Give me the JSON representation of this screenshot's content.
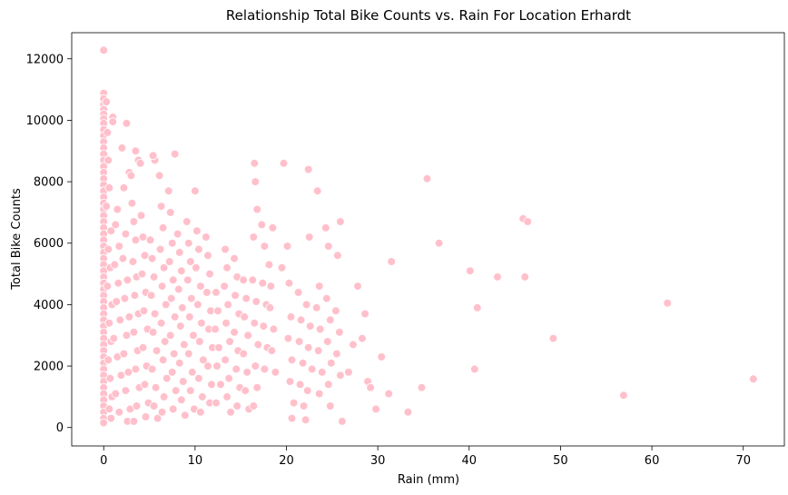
{
  "chart_data": {
    "type": "scatter",
    "title": "Relationship Total Bike Counts vs. Rain For Location Erhardt",
    "xlabel": "Rain (mm)",
    "ylabel": "Total Bike Counts",
    "xlim": [
      -3.5,
      74.5
    ],
    "ylim": [
      -600,
      12850
    ],
    "xticks": [
      0,
      10,
      20,
      30,
      40,
      50,
      60,
      70
    ],
    "yticks": [
      0,
      2000,
      4000,
      6000,
      8000,
      10000,
      12000
    ],
    "xtick_labels": [
      "0",
      "10",
      "20",
      "30",
      "40",
      "50",
      "60",
      "70"
    ],
    "ytick_labels": [
      "0",
      "2000",
      "4000",
      "6000",
      "8000",
      "10000",
      "12000"
    ],
    "grid": false,
    "marker_color": "#ffc0cb",
    "marker_edge": "#ffffff",
    "points": [
      [
        0,
        12280
      ],
      [
        0,
        10880
      ],
      [
        0,
        10700
      ],
      [
        0,
        10500
      ],
      [
        0,
        10350
      ],
      [
        0,
        10200
      ],
      [
        0,
        10050
      ],
      [
        0,
        9900
      ],
      [
        0,
        9700
      ],
      [
        0,
        9500
      ],
      [
        0,
        9300
      ],
      [
        0,
        9100
      ],
      [
        0,
        8900
      ],
      [
        0,
        8700
      ],
      [
        0,
        8500
      ],
      [
        0,
        8300
      ],
      [
        0,
        8100
      ],
      [
        0,
        7900
      ],
      [
        0,
        7700
      ],
      [
        0,
        7500
      ],
      [
        0,
        7300
      ],
      [
        0,
        7100
      ],
      [
        0,
        6900
      ],
      [
        0,
        6700
      ],
      [
        0,
        6500
      ],
      [
        0,
        6300
      ],
      [
        0,
        6100
      ],
      [
        0,
        5900
      ],
      [
        0,
        5700
      ],
      [
        0,
        5500
      ],
      [
        0,
        5300
      ],
      [
        0,
        5100
      ],
      [
        0,
        4900
      ],
      [
        0,
        4700
      ],
      [
        0,
        4500
      ],
      [
        0,
        4300
      ],
      [
        0,
        4100
      ],
      [
        0,
        3900
      ],
      [
        0,
        3700
      ],
      [
        0,
        3500
      ],
      [
        0,
        3300
      ],
      [
        0,
        3100
      ],
      [
        0,
        2900
      ],
      [
        0,
        2700
      ],
      [
        0,
        2500
      ],
      [
        0,
        2300
      ],
      [
        0,
        2100
      ],
      [
        0,
        1900
      ],
      [
        0,
        1700
      ],
      [
        0,
        1500
      ],
      [
        0,
        1300
      ],
      [
        0,
        1100
      ],
      [
        0,
        900
      ],
      [
        0,
        700
      ],
      [
        0,
        500
      ],
      [
        0,
        300
      ],
      [
        0,
        150
      ],
      [
        0.3,
        10600
      ],
      [
        0.4,
        9600
      ],
      [
        0.5,
        8700
      ],
      [
        0.6,
        7800
      ],
      [
        0.3,
        7200
      ],
      [
        0.8,
        6400
      ],
      [
        0.5,
        5800
      ],
      [
        0.7,
        5200
      ],
      [
        0.4,
        4600
      ],
      [
        0.9,
        4000
      ],
      [
        0.6,
        3400
      ],
      [
        0.8,
        2800
      ],
      [
        0.5,
        2200
      ],
      [
        0.7,
        1600
      ],
      [
        0.9,
        1000
      ],
      [
        0.6,
        600
      ],
      [
        0.8,
        300
      ],
      [
        1,
        10100
      ],
      [
        1,
        9950
      ],
      [
        1.5,
        7100
      ],
      [
        1.3,
        6600
      ],
      [
        1.7,
        5900
      ],
      [
        1.2,
        5300
      ],
      [
        1.6,
        4700
      ],
      [
        1.4,
        4100
      ],
      [
        1.8,
        3500
      ],
      [
        1.1,
        2900
      ],
      [
        1.5,
        2300
      ],
      [
        1.9,
        1700
      ],
      [
        1.3,
        1100
      ],
      [
        1.7,
        500
      ],
      [
        2,
        9100
      ],
      [
        2.2,
        7800
      ],
      [
        2.4,
        6300
      ],
      [
        2.1,
        5500
      ],
      [
        2.6,
        4800
      ],
      [
        2.3,
        4200
      ],
      [
        2.8,
        3600
      ],
      [
        2.5,
        3000
      ],
      [
        2.2,
        2400
      ],
      [
        2.7,
        1800
      ],
      [
        2.4,
        1200
      ],
      [
        2.9,
        600
      ],
      [
        2.6,
        200
      ],
      [
        2.5,
        9900
      ],
      [
        2.8,
        8300
      ],
      [
        3,
        8200
      ],
      [
        3.1,
        7300
      ],
      [
        3.3,
        6700
      ],
      [
        3.5,
        6100
      ],
      [
        3.2,
        5400
      ],
      [
        3.6,
        4900
      ],
      [
        3.4,
        4300
      ],
      [
        3.8,
        3700
      ],
      [
        3.3,
        3100
      ],
      [
        3.7,
        2500
      ],
      [
        3.5,
        1900
      ],
      [
        3.9,
        1300
      ],
      [
        3.6,
        700
      ],
      [
        3.3,
        200
      ],
      [
        3.5,
        9000
      ],
      [
        3.8,
        8700
      ],
      [
        4,
        8600
      ],
      [
        4.1,
        6900
      ],
      [
        4.3,
        6200
      ],
      [
        4.5,
        5600
      ],
      [
        4.2,
        5000
      ],
      [
        4.6,
        4400
      ],
      [
        4.4,
        3800
      ],
      [
        4.8,
        3200
      ],
      [
        4.3,
        2600
      ],
      [
        4.7,
        2000
      ],
      [
        4.5,
        1400
      ],
      [
        4.9,
        800
      ],
      [
        4.6,
        350
      ],
      [
        5.1,
        6100
      ],
      [
        5.3,
        5500
      ],
      [
        5.5,
        4900
      ],
      [
        5.2,
        4300
      ],
      [
        5.6,
        3700
      ],
      [
        5.4,
        3100
      ],
      [
        5.8,
        2500
      ],
      [
        5.3,
        1900
      ],
      [
        5.7,
        1300
      ],
      [
        5.5,
        700
      ],
      [
        5.9,
        300
      ],
      [
        5.6,
        8700
      ],
      [
        5.4,
        8850
      ],
      [
        6.1,
        8200
      ],
      [
        6.3,
        7200
      ],
      [
        6.5,
        6500
      ],
      [
        6.2,
        5800
      ],
      [
        6.6,
        5200
      ],
      [
        6.4,
        4600
      ],
      [
        6.8,
        4000
      ],
      [
        6.3,
        3400
      ],
      [
        6.7,
        2800
      ],
      [
        6.5,
        2200
      ],
      [
        6.9,
        1600
      ],
      [
        6.6,
        1000
      ],
      [
        6.4,
        500
      ],
      [
        7.1,
        7700
      ],
      [
        7.3,
        7000
      ],
      [
        7.5,
        6000
      ],
      [
        7.2,
        5400
      ],
      [
        7.6,
        4800
      ],
      [
        7.4,
        4200
      ],
      [
        7.8,
        3600
      ],
      [
        7.3,
        3000
      ],
      [
        7.7,
        2400
      ],
      [
        7.5,
        1800
      ],
      [
        7.9,
        1200
      ],
      [
        7.6,
        600
      ],
      [
        7.8,
        8900
      ],
      [
        8.1,
        6300
      ],
      [
        8.3,
        5700
      ],
      [
        8.5,
        5100
      ],
      [
        8.2,
        4500
      ],
      [
        8.6,
        3900
      ],
      [
        8.4,
        3300
      ],
      [
        8.8,
        2700
      ],
      [
        8.3,
        2100
      ],
      [
        8.7,
        1500
      ],
      [
        8.5,
        900
      ],
      [
        8.9,
        400
      ],
      [
        9.1,
        6700
      ],
      [
        9.3,
        6000
      ],
      [
        9.5,
        5400
      ],
      [
        9.2,
        4800
      ],
      [
        9.6,
        4200
      ],
      [
        9.4,
        3600
      ],
      [
        9.8,
        3000
      ],
      [
        9.3,
        2400
      ],
      [
        9.7,
        1800
      ],
      [
        9.5,
        1200
      ],
      [
        9.9,
        600
      ],
      [
        10,
        7700
      ],
      [
        10.2,
        6400
      ],
      [
        10.4,
        5800
      ],
      [
        10.1,
        5200
      ],
      [
        10.6,
        4600
      ],
      [
        10.3,
        4000
      ],
      [
        10.7,
        3400
      ],
      [
        10.5,
        2800
      ],
      [
        10.9,
        2200
      ],
      [
        10.4,
        1600
      ],
      [
        10.8,
        1000
      ],
      [
        10.6,
        500
      ],
      [
        11.2,
        6200
      ],
      [
        11.4,
        5600
      ],
      [
        11.6,
        5000
      ],
      [
        11.3,
        4400
      ],
      [
        11.7,
        3800
      ],
      [
        11.5,
        3200
      ],
      [
        11.9,
        2600
      ],
      [
        11.4,
        2000
      ],
      [
        11.8,
        1400
      ],
      [
        11.6,
        800
      ],
      [
        12.3,
        4400
      ],
      [
        12.5,
        3800
      ],
      [
        12.2,
        3200
      ],
      [
        12.6,
        2600
      ],
      [
        12.4,
        2000
      ],
      [
        12.8,
        1400
      ],
      [
        12.3,
        800
      ],
      [
        13.3,
        5800
      ],
      [
        13.5,
        5200
      ],
      [
        13.2,
        4600
      ],
      [
        13.6,
        4000
      ],
      [
        13.4,
        3400
      ],
      [
        13.8,
        2800
      ],
      [
        13.3,
        2200
      ],
      [
        13.7,
        1600
      ],
      [
        13.5,
        1000
      ],
      [
        13.9,
        500
      ],
      [
        14.3,
        5500
      ],
      [
        14.6,
        4900
      ],
      [
        14.4,
        4300
      ],
      [
        14.8,
        3700
      ],
      [
        14.3,
        3100
      ],
      [
        14.7,
        2500
      ],
      [
        14.5,
        1900
      ],
      [
        14.9,
        1300
      ],
      [
        14.6,
        700
      ],
      [
        15.3,
        4800
      ],
      [
        15.6,
        4200
      ],
      [
        15.4,
        3600
      ],
      [
        15.8,
        3000
      ],
      [
        15.3,
        2400
      ],
      [
        15.7,
        1800
      ],
      [
        15.5,
        1200
      ],
      [
        15.9,
        600
      ],
      [
        16.5,
        8600
      ],
      [
        16.6,
        8000
      ],
      [
        16.8,
        7100
      ],
      [
        16.4,
        6200
      ],
      [
        16.3,
        4800
      ],
      [
        16.7,
        4100
      ],
      [
        16.5,
        3400
      ],
      [
        16.9,
        2700
      ],
      [
        16.6,
        2000
      ],
      [
        16.8,
        1300
      ],
      [
        16.4,
        700
      ],
      [
        17.3,
        6600
      ],
      [
        17.6,
        5900
      ],
      [
        17.4,
        4700
      ],
      [
        17.8,
        4000
      ],
      [
        17.5,
        3300
      ],
      [
        17.9,
        2600
      ],
      [
        17.6,
        1900
      ],
      [
        18.1,
        5300
      ],
      [
        18.3,
        4600
      ],
      [
        18.5,
        6500
      ],
      [
        18.2,
        3900
      ],
      [
        18.6,
        3200
      ],
      [
        18.4,
        2500
      ],
      [
        18.8,
        1800
      ],
      [
        19.7,
        8600
      ],
      [
        19.5,
        5200
      ],
      [
        20.1,
        5900
      ],
      [
        20.3,
        4700
      ],
      [
        20.5,
        3600
      ],
      [
        20.2,
        2900
      ],
      [
        20.6,
        2200
      ],
      [
        20.4,
        1500
      ],
      [
        20.8,
        800
      ],
      [
        20.6,
        300
      ],
      [
        21.3,
        4400
      ],
      [
        21.6,
        3500
      ],
      [
        21.4,
        2800
      ],
      [
        21.8,
        2100
      ],
      [
        21.5,
        1400
      ],
      [
        21.9,
        700
      ],
      [
        22.4,
        8400
      ],
      [
        22.5,
        6200
      ],
      [
        22.2,
        4000
      ],
      [
        22.6,
        3300
      ],
      [
        22.4,
        2600
      ],
      [
        22.8,
        1900
      ],
      [
        22.3,
        1200
      ],
      [
        22.1,
        250
      ],
      [
        23.4,
        7700
      ],
      [
        23.6,
        4600
      ],
      [
        23.3,
        3900
      ],
      [
        23.7,
        3200
      ],
      [
        23.5,
        2500
      ],
      [
        23.9,
        1800
      ],
      [
        23.6,
        1100
      ],
      [
        24.3,
        6500
      ],
      [
        24.6,
        5900
      ],
      [
        24.4,
        4200
      ],
      [
        24.8,
        3500
      ],
      [
        24.5,
        2800
      ],
      [
        24.9,
        2100
      ],
      [
        24.6,
        1400
      ],
      [
        24.8,
        700
      ],
      [
        25.6,
        5600
      ],
      [
        25.9,
        6700
      ],
      [
        25.4,
        3800
      ],
      [
        25.8,
        3100
      ],
      [
        25.5,
        2400
      ],
      [
        25.9,
        1700
      ],
      [
        26.1,
        200
      ],
      [
        26.8,
        1800
      ],
      [
        27.3,
        2700
      ],
      [
        27.8,
        4600
      ],
      [
        28.6,
        3700
      ],
      [
        28.3,
        2900
      ],
      [
        28.9,
        1500
      ],
      [
        29.2,
        1300
      ],
      [
        29.8,
        600
      ],
      [
        30.4,
        2300
      ],
      [
        31.2,
        1100
      ],
      [
        31.5,
        5400
      ],
      [
        33.3,
        500
      ],
      [
        34.8,
        1300
      ],
      [
        35.4,
        8100
      ],
      [
        36.7,
        6000
      ],
      [
        40.1,
        5100
      ],
      [
        40.6,
        1900
      ],
      [
        40.9,
        3900
      ],
      [
        43.1,
        4900
      ],
      [
        45.9,
        6800
      ],
      [
        46.1,
        4900
      ],
      [
        46.4,
        6700
      ],
      [
        49.2,
        2900
      ],
      [
        56.9,
        1050
      ],
      [
        61.7,
        4050
      ],
      [
        71.1,
        1580
      ]
    ]
  }
}
